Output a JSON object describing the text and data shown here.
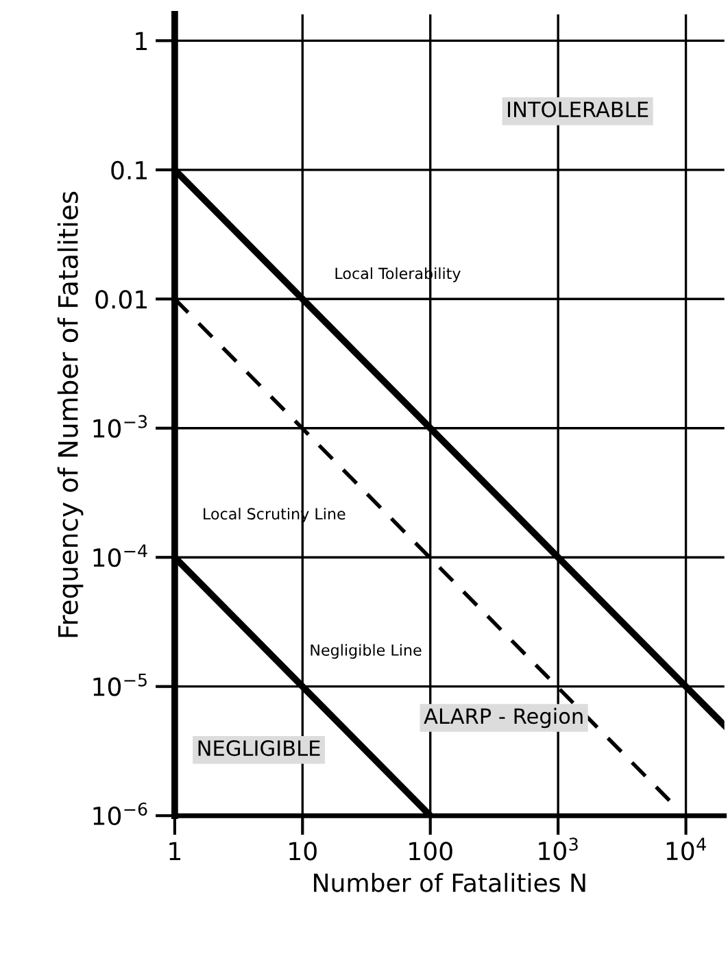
{
  "chart_data": {
    "type": "line",
    "xlabel": "Number of Fatalities N",
    "ylabel": "Frequency of Number of Fatalities",
    "log": "xy",
    "grid": true,
    "xlim": [
      1,
      20000
    ],
    "xticks": [
      1,
      10,
      100,
      {
        "value": 1000,
        "label": "10$^{3}$"
      },
      {
        "value": 10000,
        "label": "10$^{4}$"
      }
    ],
    "ylim": [
      1e-06,
      1.6
    ],
    "yticks": [
      {
        "value": 1e-06,
        "label": "10$^{−6}$"
      },
      {
        "value": 1e-05,
        "label": "10$^{−5}$"
      },
      {
        "value": 0.0001,
        "label": "10$^{−4}$"
      },
      {
        "value": 0.001,
        "label": "10$^{−3}$"
      },
      0.01,
      0.1,
      1
    ],
    "series": [
      {
        "color": "#000000",
        "line_style": "solid",
        "x": [
          1,
          20000
        ],
        "values": [
          0.1,
          5e-06
        ]
      },
      {
        "color": "#000000",
        "line_style": "dashed",
        "x": [
          1,
          7500
        ],
        "values": [
          0.01,
          1.3e-06
        ]
      },
      {
        "color": "#000000",
        "line_style": "solid",
        "x": [
          1,
          100
        ],
        "values": [
          0.0001,
          1e-06
        ]
      }
    ],
    "annotations": [
      "Local Tolerability",
      "Local Scrutiny Line",
      "Negligible Line",
      "INTOLERABLE",
      "ALARP - Region",
      "NEGLIGIBLE"
    ]
  }
}
